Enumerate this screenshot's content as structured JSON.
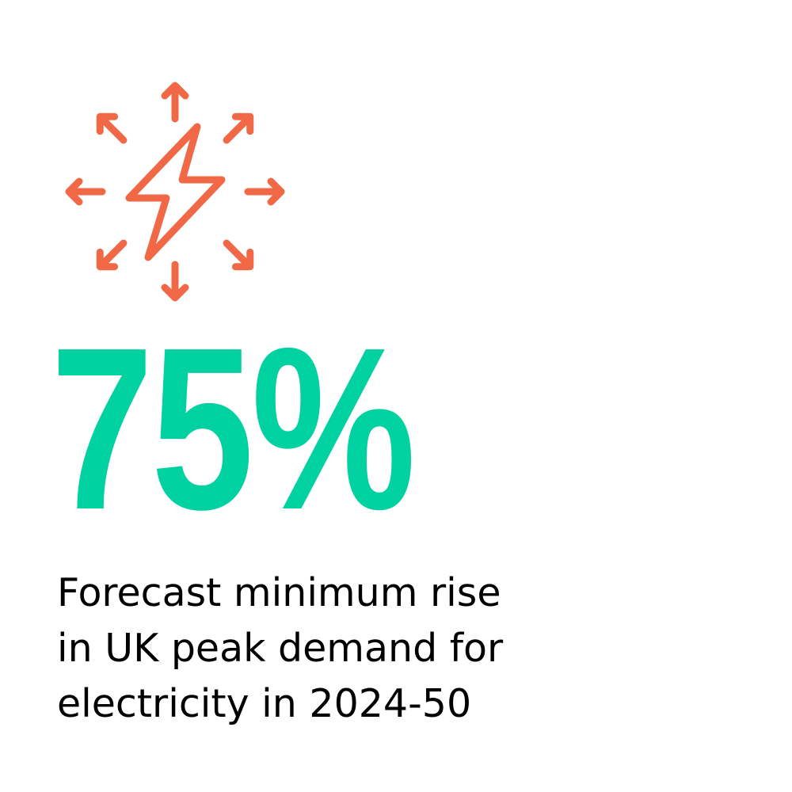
{
  "colors": {
    "icon": "#F06845",
    "stat": "#00D1A0",
    "text": "#000000"
  },
  "icon": "lightning-bolt-radiating-arrows-icon",
  "stat": {
    "value": "75%"
  },
  "caption": {
    "lines": [
      "Forecast minimum rise",
      "in UK peak demand for",
      "electricity in 2024-50"
    ]
  }
}
